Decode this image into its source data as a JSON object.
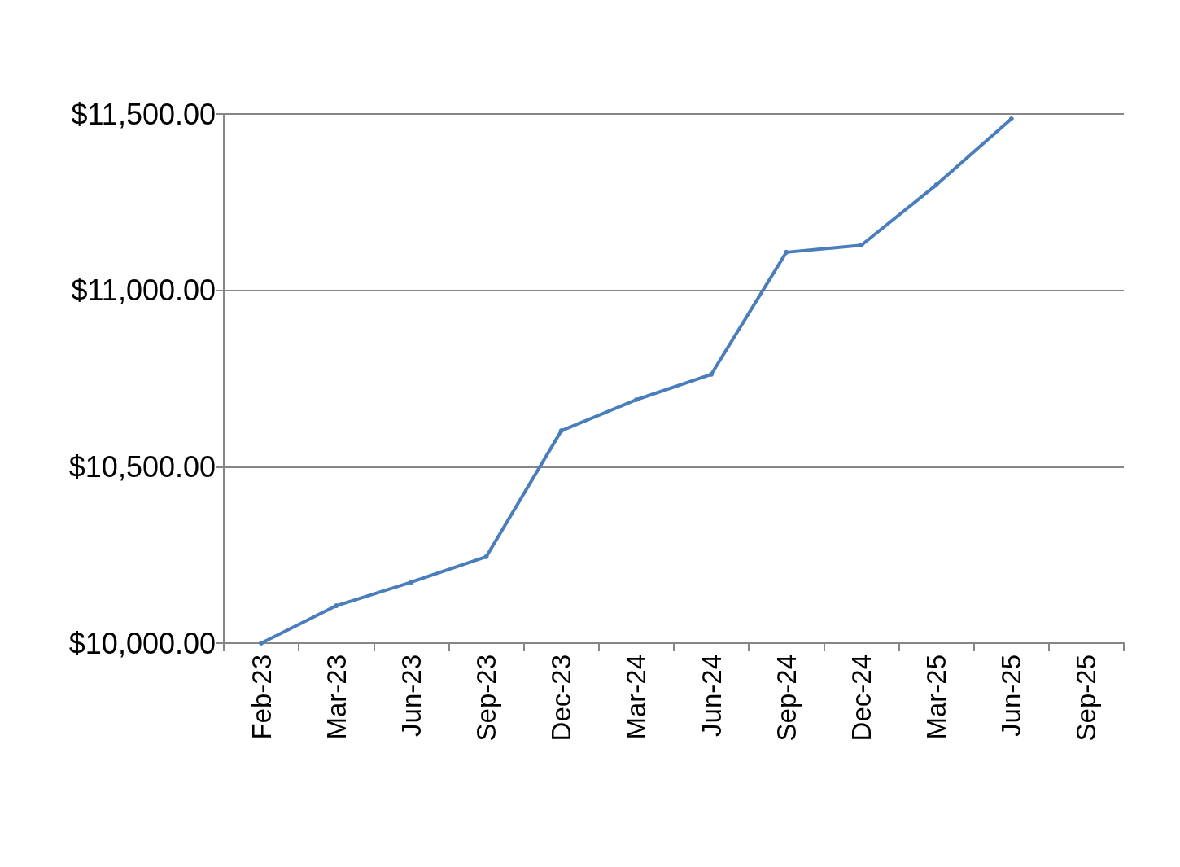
{
  "chart_data": {
    "type": "line",
    "categories": [
      "Feb-23",
      "Mar-23",
      "Jun-23",
      "Sep-23",
      "Dec-23",
      "Mar-24",
      "Jun-24",
      "Sep-24",
      "Dec-24",
      "Mar-25",
      "Jun-25",
      "Sep-25"
    ],
    "series": [
      {
        "color": "#4a7ebb",
        "values": [
          10000,
          10106,
          10173,
          10245,
          10602,
          10690,
          10762,
          11108,
          11128,
          11299,
          11486,
          null
        ]
      }
    ],
    "ylim": [
      10000,
      11500
    ],
    "yticks": [
      {
        "value": 10000,
        "label": "$10,000.00"
      },
      {
        "value": 10500,
        "label": "$10,500.00"
      },
      {
        "value": 11000,
        "label": "$11,000.00"
      },
      {
        "value": 11500,
        "label": "$11,500.00"
      }
    ],
    "grid": "y",
    "marker": "circle",
    "line_style": "solid"
  }
}
